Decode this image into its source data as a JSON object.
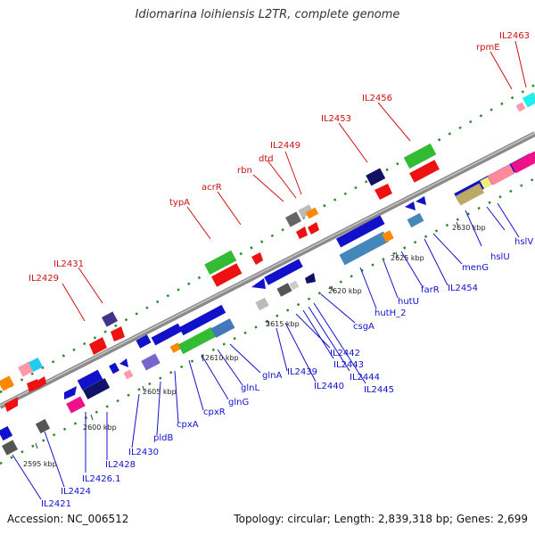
{
  "header": {
    "title": "Idiomarina loihiensis L2TR, complete genome"
  },
  "footer": {
    "accession": "Accession: NC_006512",
    "summary": "Topology: circular; Length: 2,839,318 bp; Genes: 2,699"
  },
  "colors": {
    "backbone": "#8a8a8a",
    "forward_label": "#cc1111",
    "reverse_label": "#1111cc",
    "dots": "#2a8a2a"
  },
  "ticks": [
    "2595 kbp",
    "2600 kbp",
    "2605 kbp",
    "2610 kbp",
    "2615 kbp",
    "2620 kbp",
    "2625 kbp",
    "2630 kbp"
  ],
  "forward_genes": [
    "IL2429",
    "IL2431",
    "typA",
    "acrR",
    "rbn",
    "dtd",
    "IL2449",
    "IL2453",
    "IL2456",
    "rpmE",
    "IL2463"
  ],
  "reverse_genes": [
    "IL2421",
    "IL2424",
    "IL2426.1",
    "IL2428",
    "IL2430",
    "pldB",
    "cpxA",
    "cpxR",
    "glnG",
    "glnL",
    "glnA",
    "IL2439",
    "IL2440",
    "IL2442",
    "IL2443",
    "IL2444",
    "IL2445",
    "csgA",
    "hutH_2",
    "hutU",
    "farR",
    "IL2454",
    "menG",
    "hslU",
    "hslV"
  ]
}
